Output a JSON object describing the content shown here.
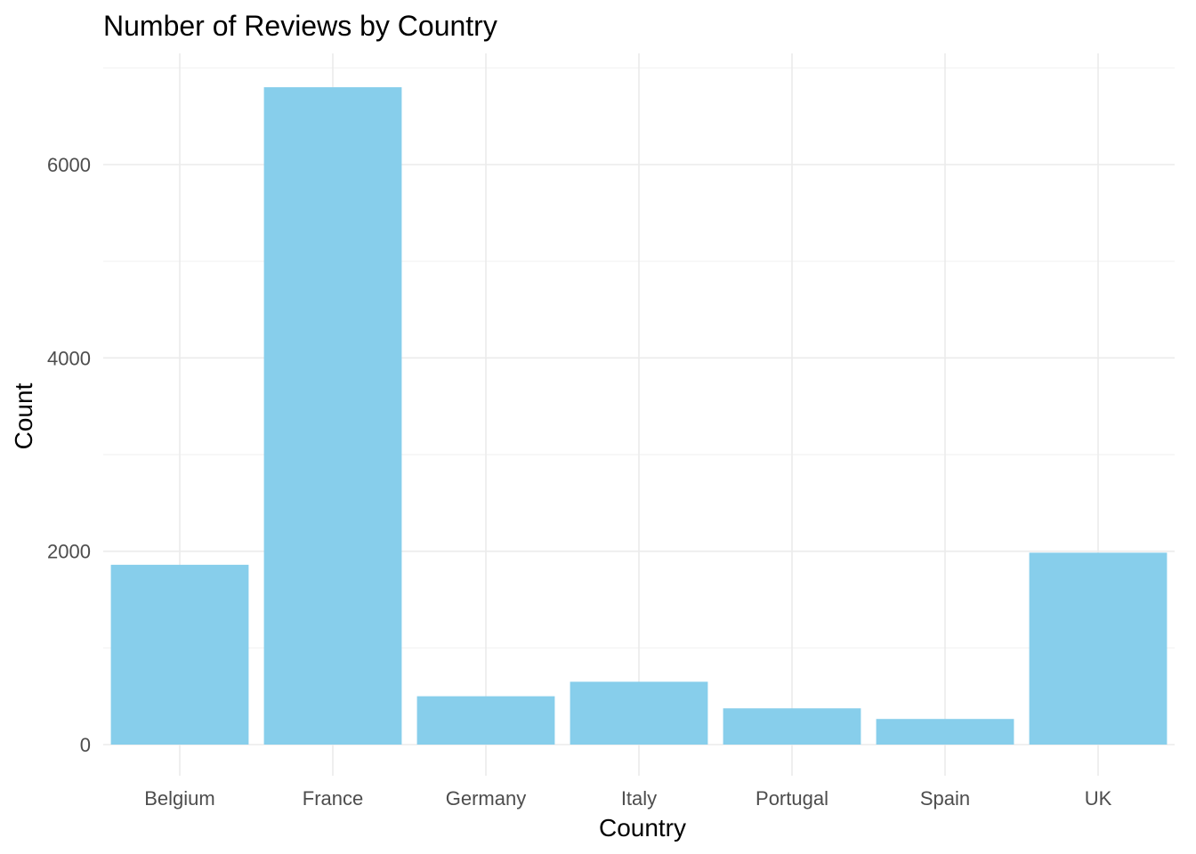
{
  "chart_data": {
    "type": "bar",
    "title": "Number of Reviews by Country",
    "xlabel": "Country",
    "ylabel": "Count",
    "categories": [
      "Belgium",
      "France",
      "Germany",
      "Italy",
      "Portugal",
      "Spain",
      "UK"
    ],
    "values": [
      1860,
      6800,
      500,
      650,
      375,
      265,
      1985
    ],
    "ylim": [
      0,
      7150
    ],
    "yticks": [
      0,
      2000,
      4000,
      6000
    ],
    "yminor": [
      1000,
      3000,
      5000,
      7000
    ],
    "grid": true,
    "legend": "none",
    "bar_color": "#87ceeb",
    "grid_color": "#ebebeb"
  }
}
